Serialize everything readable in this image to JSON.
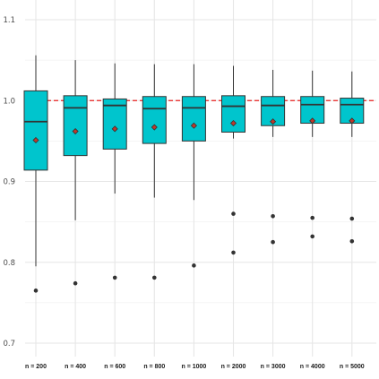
{
  "chart_data": {
    "type": "boxplot",
    "title": "",
    "xlabel": "",
    "ylabel": "",
    "categories": [
      "n = 200",
      "n = 400",
      "n = 600",
      "n = 800",
      "n = 1000",
      "n = 2000",
      "n = 3000",
      "n = 4000",
      "n = 5000"
    ],
    "ylim": [
      0.68,
      1.12
    ],
    "yticks": [
      0.7,
      0.8,
      0.9,
      1.0,
      1.1
    ],
    "ytick_labels": [
      "0.7",
      "0.8",
      "0.9",
      "1.0",
      "1.1"
    ],
    "grid": true,
    "reference_line": {
      "y": 1.0,
      "style": "dashed",
      "color": "#e8211f"
    },
    "box_color": "#00c5cd",
    "boxes": [
      {
        "q1": 0.914,
        "median": 0.974,
        "q3": 1.012,
        "whisker_low": 0.795,
        "whisker_high": 1.056,
        "mean": 0.951,
        "outliers": [
          0.765
        ]
      },
      {
        "q1": 0.932,
        "median": 0.991,
        "q3": 1.006,
        "whisker_low": 0.852,
        "whisker_high": 1.05,
        "mean": 0.962,
        "outliers": [
          0.774
        ]
      },
      {
        "q1": 0.94,
        "median": 0.994,
        "q3": 1.002,
        "whisker_low": 0.885,
        "whisker_high": 1.046,
        "mean": 0.965,
        "outliers": [
          0.781
        ]
      },
      {
        "q1": 0.947,
        "median": 0.99,
        "q3": 1.005,
        "whisker_low": 0.88,
        "whisker_high": 1.045,
        "mean": 0.967,
        "outliers": [
          0.781
        ]
      },
      {
        "q1": 0.95,
        "median": 0.991,
        "q3": 1.005,
        "whisker_low": 0.877,
        "whisker_high": 1.045,
        "mean": 0.969,
        "outliers": [
          0.796
        ]
      },
      {
        "q1": 0.961,
        "median": 0.993,
        "q3": 1.006,
        "whisker_low": 0.953,
        "whisker_high": 1.043,
        "mean": 0.972,
        "outliers": [
          0.812,
          0.86
        ]
      },
      {
        "q1": 0.969,
        "median": 0.994,
        "q3": 1.005,
        "whisker_low": 0.955,
        "whisker_high": 1.038,
        "mean": 0.974,
        "outliers": [
          0.825,
          0.857
        ]
      },
      {
        "q1": 0.972,
        "median": 0.995,
        "q3": 1.005,
        "whisker_low": 0.955,
        "whisker_high": 1.037,
        "mean": 0.975,
        "outliers": [
          0.832,
          0.855
        ]
      },
      {
        "q1": 0.972,
        "median": 0.995,
        "q3": 1.003,
        "whisker_low": 0.955,
        "whisker_high": 1.036,
        "mean": 0.975,
        "outliers": [
          0.826,
          0.854
        ]
      }
    ]
  }
}
